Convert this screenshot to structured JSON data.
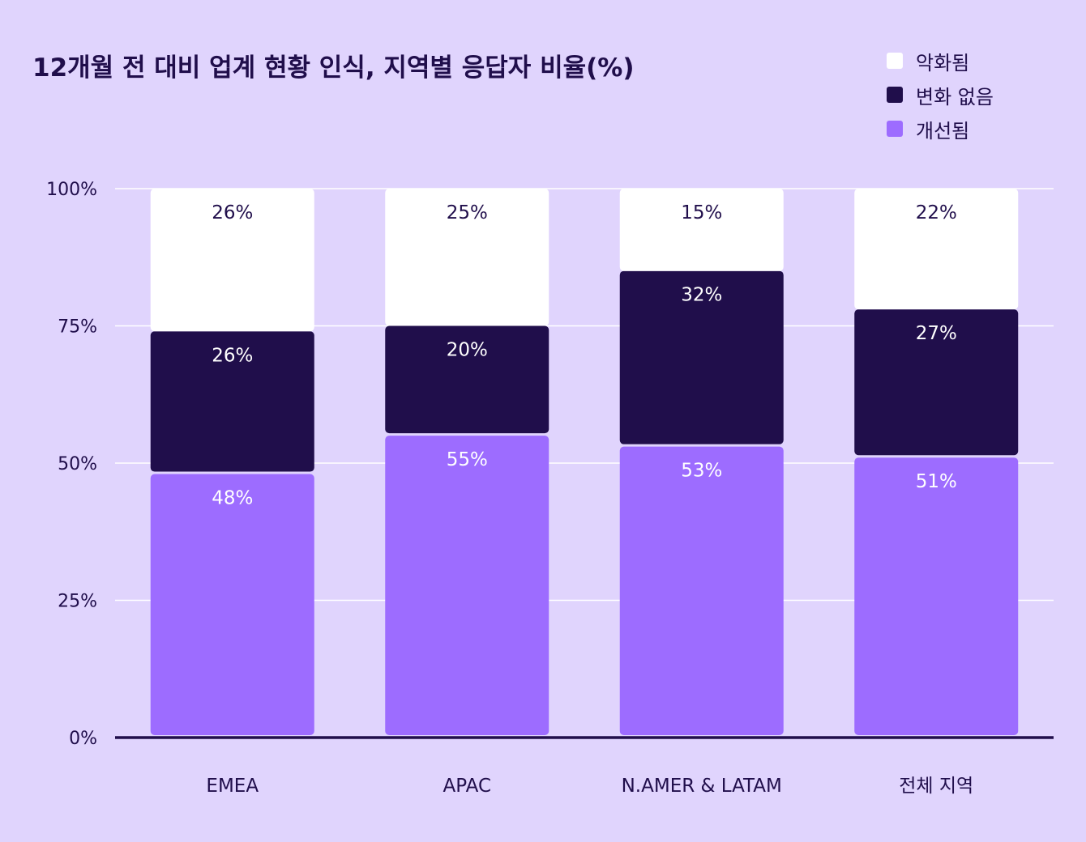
{
  "chart_data": {
    "type": "bar",
    "stacked": true,
    "title": "12개월 전 대비 업계 현황 인식, 지역별 응답자 비율(%)",
    "categories": [
      "EMEA",
      "APAC",
      "N.AMER & LATAM",
      "전체 지역"
    ],
    "series": [
      {
        "name": "개선됨",
        "color": "#9d6cff",
        "label_color": "#ffffff",
        "values": [
          48,
          55,
          53,
          51
        ],
        "labels": [
          "48%",
          "55%",
          "53%",
          "51%"
        ]
      },
      {
        "name": "변화 없음",
        "color": "#200e4b",
        "label_color": "#ffffff",
        "values": [
          26,
          20,
          32,
          27
        ],
        "labels": [
          "26%",
          "20%",
          "32%",
          "27%"
        ]
      },
      {
        "name": "악화됨",
        "color": "#ffffff",
        "label_color": "#200e4b",
        "values": [
          26,
          25,
          15,
          22
        ],
        "labels": [
          "26%",
          "25%",
          "15%",
          "22%"
        ]
      }
    ],
    "legend_order": [
      2,
      1,
      0
    ],
    "legend_position": "top-right",
    "ylim": [
      0,
      100
    ],
    "yticks": [
      0,
      25,
      50,
      75,
      100
    ],
    "ytick_labels": [
      "0%",
      "25%",
      "50%",
      "75%",
      "100%"
    ],
    "grid": true,
    "colors": {
      "background": "#e0d4fd",
      "grid": "#ffffff",
      "axis": "#200e4b",
      "text": "#200e4b"
    }
  }
}
